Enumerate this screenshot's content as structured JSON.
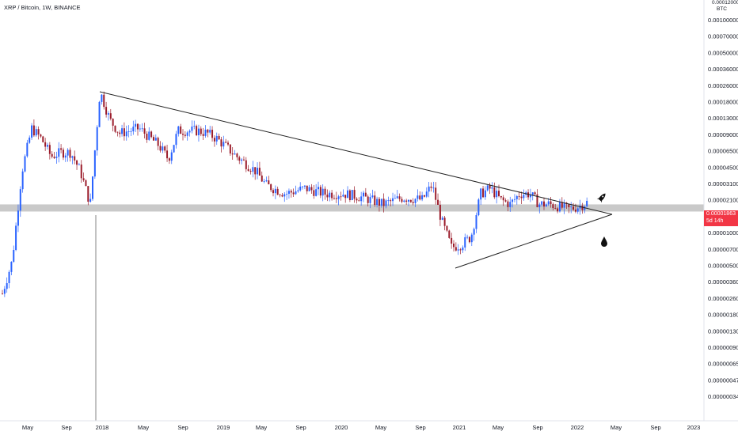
{
  "header": {
    "symbol_title": "XRP / Bitcoin, 1W, BINANCE"
  },
  "price_scale": {
    "currency": "BTC",
    "top_label": "0.00012000"
  },
  "last_price": {
    "value": "0.00001863",
    "countdown": "5d 14h",
    "color": "#f23645"
  },
  "colors": {
    "up": "#2962ff",
    "down": "#9b1c2b",
    "support_band": "#c9c9c9",
    "trendline": "#222222"
  },
  "annotations": {
    "rocket_icon": "rocket-icon",
    "drop_icon": "drop-icon"
  },
  "chart_data": {
    "type": "candlestick",
    "title": "XRP / Bitcoin, 1W, BINANCE",
    "y_scale": "log",
    "y_ticks": [
      "0.00100000",
      "0.00070000",
      "0.00050000",
      "0.00036000",
      "0.00026000",
      "0.00018000",
      "0.00013000",
      "0.00009000",
      "0.00006500",
      "0.00004500",
      "0.00003100",
      "0.00002100",
      "0.00001500",
      "0.00001000",
      "0.00000700",
      "0.00000500",
      "0.00000360",
      "0.00000260",
      "0.00000180",
      "0.00000130",
      "0.00000090",
      "0.00000065",
      "0.00000047",
      "0.00000034"
    ],
    "x_ticks": [
      "May",
      "Sep",
      "2018",
      "May",
      "Sep",
      "2019",
      "May",
      "Sep",
      "2020",
      "May",
      "Sep",
      "2021",
      "May",
      "Sep",
      "2022",
      "May",
      "Sep",
      "2023"
    ],
    "support_level": 1.863e-05,
    "close_path": [
      [
        "2017-03",
        3e-06
      ],
      [
        "2017-04",
        6e-06
      ],
      [
        "2017-05",
        4e-05
      ],
      [
        "2017-06",
        0.0001
      ],
      [
        "2017-07",
        8e-05
      ],
      [
        "2017-08",
        5.5e-05
      ],
      [
        "2017-09",
        6e-05
      ],
      [
        "2017-10",
        6e-05
      ],
      [
        "2017-11",
        4e-05
      ],
      [
        "2017-12",
        2e-05
      ],
      [
        "2018-01",
        0.00022
      ],
      [
        "2018-02",
        0.00012
      ],
      [
        "2018-03",
        9e-05
      ],
      [
        "2018-05",
        0.0001
      ],
      [
        "2018-07",
        7e-05
      ],
      [
        "2018-08",
        5.2e-05
      ],
      [
        "2018-09",
        9.5e-05
      ],
      [
        "2018-11",
        9.5e-05
      ],
      [
        "2018-12",
        9e-05
      ],
      [
        "2019-01",
        8e-05
      ],
      [
        "2019-03",
        5.5e-05
      ],
      [
        "2019-05",
        4e-05
      ],
      [
        "2019-06",
        3e-05
      ],
      [
        "2019-08",
        2.5e-05
      ],
      [
        "2019-10",
        2.8e-05
      ],
      [
        "2019-12",
        2.5e-05
      ],
      [
        "2020-02",
        2.5e-05
      ],
      [
        "2020-04",
        2.3e-05
      ],
      [
        "2020-06",
        2e-05
      ],
      [
        "2020-08",
        2.3e-05
      ],
      [
        "2020-10",
        2.2e-05
      ],
      [
        "2020-11",
        3e-05
      ],
      [
        "2020-12",
        1.4e-05
      ],
      [
        "2021-01",
        8e-06
      ],
      [
        "2021-02",
        8.5e-06
      ],
      [
        "2021-03",
        1e-05
      ],
      [
        "2021-04",
        2.5e-05
      ],
      [
        "2021-05",
        2.8e-05
      ],
      [
        "2021-06",
        2.2e-05
      ],
      [
        "2021-07",
        2e-05
      ],
      [
        "2021-08",
        2.5e-05
      ],
      [
        "2021-09",
        2.5e-05
      ],
      [
        "2021-10",
        2e-05
      ],
      [
        "2021-11",
        2e-05
      ],
      [
        "2021-12",
        1.9e-05
      ],
      [
        "2022-01",
        1.8e-05
      ],
      [
        "2022-02",
        1.9e-05
      ],
      [
        "2022-03",
        2.1e-05
      ]
    ]
  }
}
